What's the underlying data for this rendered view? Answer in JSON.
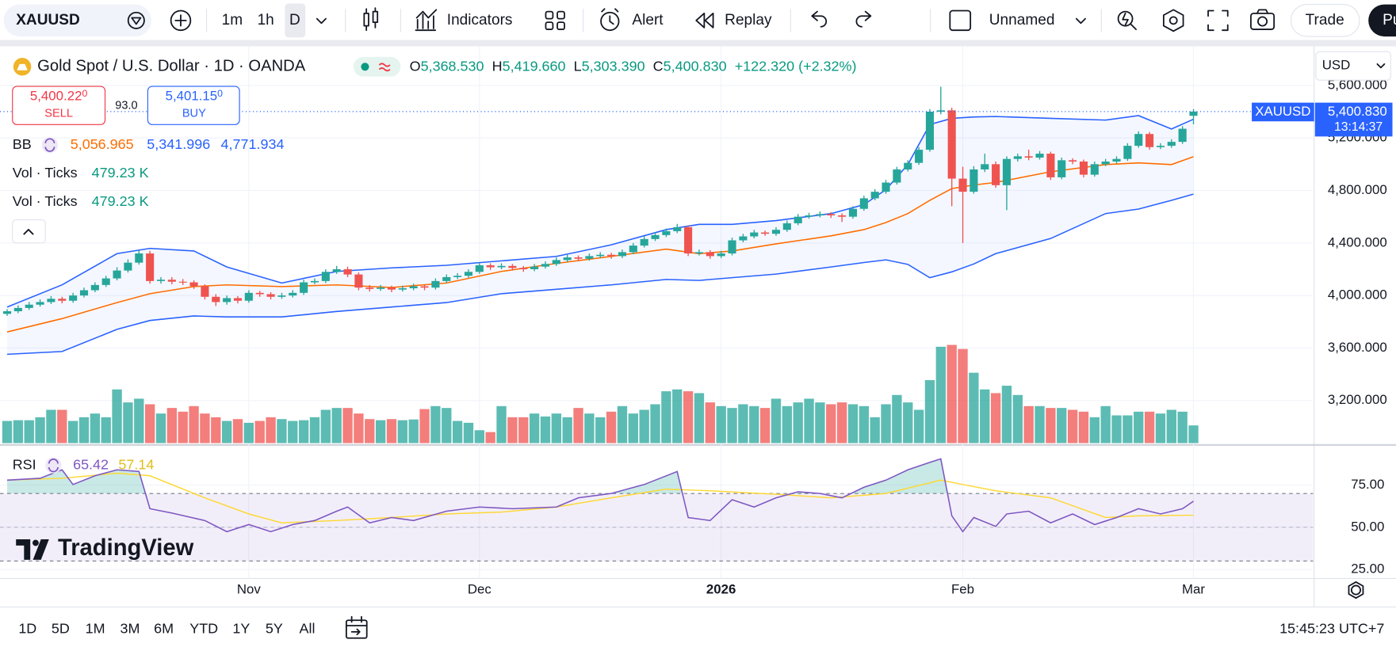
{
  "toolbar": {
    "symbol": "XAUUSD",
    "intervals": [
      "1m",
      "1h",
      "D"
    ],
    "indicators": "Indicators",
    "alert": "Alert",
    "replay": "Replay",
    "layout": "Unnamed",
    "trade": "Trade",
    "publish": "Pu"
  },
  "legend": {
    "title": "Gold Spot / U.S. Dollar · 1D · OANDA",
    "ohlc": [
      {
        "key": "O",
        "value": "5,368.530"
      },
      {
        "key": "H",
        "value": "5,419.660"
      },
      {
        "key": "L",
        "value": "5,303.390"
      },
      {
        "key": "C",
        "value": "5,400.830"
      }
    ],
    "change": "+122.320 (+2.32%)",
    "sell_price": "5,400.22",
    "sell_pip": "0",
    "sell": "SELL",
    "spread": "93.0",
    "buy_price": "5,401.15",
    "buy_pip": "0",
    "buy": "BUY",
    "bb": {
      "name": "BB",
      "values": [
        "5,056.965",
        "5,341.996",
        "4,771.934"
      ]
    },
    "vol": [
      {
        "name": "Vol · Ticks",
        "value": "479.23 K"
      },
      {
        "name": "Vol · Ticks",
        "value": "479.23 K"
      }
    ],
    "rsi": {
      "name": "RSI",
      "values": [
        "65.42",
        "57.14"
      ]
    }
  },
  "price_label": {
    "symbol": "XAUUSD",
    "price": "5,400.830",
    "countdown": "13:14:37"
  },
  "currency": "USD",
  "watermark": "TradingView",
  "ranges": [
    "1D",
    "5D",
    "1M",
    "3M",
    "6M",
    "YTD",
    "1Y",
    "5Y",
    "All"
  ],
  "clock": "15:45:23 UTC+7",
  "chart_data": {
    "type": "candlestick",
    "xlim": [
      -0.65,
      118.9
    ],
    "xticks": [
      {
        "value": 22,
        "label": "Nov"
      },
      {
        "value": 43,
        "label": "Dec"
      },
      {
        "value": 65,
        "label": "2026"
      },
      {
        "value": 87,
        "label": "Feb"
      },
      {
        "value": 108,
        "label": "Mar"
      }
    ],
    "ylim": [
      2875,
      5898
    ],
    "yticks": [
      {
        "value": 3200,
        "label": "3,200.000"
      },
      {
        "value": 3600,
        "label": "3,600.000"
      },
      {
        "value": 4000,
        "label": "4,000.000"
      },
      {
        "value": 4400,
        "label": "4,400.000"
      },
      {
        "value": 4800,
        "label": "4,800.000"
      },
      {
        "value": 5200,
        "label": "5,200.000"
      },
      {
        "value": 5600,
        "label": "5,600.000"
      }
    ],
    "grid": true,
    "colors": {
      "up": "#26a69a",
      "down": "#ef5350",
      "last": "#2962ff"
    },
    "ohlc": [
      [
        3860,
        3895,
        3845,
        3880
      ],
      [
        3880,
        3925,
        3865,
        3905
      ],
      [
        3905,
        3950,
        3890,
        3930
      ],
      [
        3930,
        3970,
        3915,
        3950
      ],
      [
        3950,
        3995,
        3935,
        3975
      ],
      [
        3975,
        3990,
        3940,
        3960
      ],
      [
        3960,
        4020,
        3945,
        4000
      ],
      [
        4000,
        4060,
        3985,
        4040
      ],
      [
        4040,
        4100,
        4025,
        4080
      ],
      [
        4080,
        4150,
        4065,
        4130
      ],
      [
        4130,
        4215,
        4115,
        4190
      ],
      [
        4190,
        4275,
        4175,
        4250
      ],
      [
        4250,
        4345,
        4235,
        4320
      ],
      [
        4320,
        4340,
        4090,
        4110
      ],
      [
        4110,
        4140,
        4090,
        4120
      ],
      [
        4120,
        4140,
        4085,
        4105
      ],
      [
        4105,
        4125,
        4080,
        4100
      ],
      [
        4100,
        4115,
        4050,
        4070
      ],
      [
        4070,
        4085,
        3970,
        3990
      ],
      [
        3990,
        4010,
        3920,
        3950
      ],
      [
        3950,
        4000,
        3930,
        3980
      ],
      [
        3980,
        3995,
        3940,
        3960
      ],
      [
        3960,
        4040,
        3945,
        4020
      ],
      [
        4020,
        4035,
        3990,
        4010
      ],
      [
        4010,
        4025,
        3970,
        3990
      ],
      [
        3990,
        4020,
        3975,
        4000
      ],
      [
        4000,
        4040,
        3985,
        4020
      ],
      [
        4020,
        4120,
        4005,
        4100
      ],
      [
        4100,
        4130,
        4085,
        4110
      ],
      [
        4110,
        4200,
        4095,
        4180
      ],
      [
        4180,
        4225,
        4165,
        4200
      ],
      [
        4200,
        4220,
        4140,
        4160
      ],
      [
        4160,
        4175,
        4040,
        4060
      ],
      [
        4060,
        4080,
        4030,
        4050
      ],
      [
        4050,
        4080,
        4035,
        4060
      ],
      [
        4060,
        4075,
        4025,
        4045
      ],
      [
        4045,
        4075,
        4030,
        4055
      ],
      [
        4055,
        4090,
        4040,
        4070
      ],
      [
        4070,
        4085,
        4040,
        4060
      ],
      [
        4060,
        4130,
        4045,
        4110
      ],
      [
        4110,
        4160,
        4095,
        4140
      ],
      [
        4140,
        4170,
        4125,
        4150
      ],
      [
        4150,
        4200,
        4135,
        4180
      ],
      [
        4180,
        4250,
        4165,
        4230
      ],
      [
        4230,
        4245,
        4195,
        4215
      ],
      [
        4215,
        4245,
        4200,
        4225
      ],
      [
        4225,
        4240,
        4190,
        4210
      ],
      [
        4210,
        4225,
        4180,
        4200
      ],
      [
        4200,
        4240,
        4185,
        4220
      ],
      [
        4220,
        4260,
        4205,
        4240
      ],
      [
        4240,
        4290,
        4225,
        4270
      ],
      [
        4270,
        4310,
        4255,
        4290
      ],
      [
        4290,
        4305,
        4260,
        4280
      ],
      [
        4280,
        4320,
        4265,
        4300
      ],
      [
        4300,
        4330,
        4285,
        4310
      ],
      [
        4310,
        4325,
        4280,
        4300
      ],
      [
        4300,
        4350,
        4285,
        4330
      ],
      [
        4330,
        4400,
        4315,
        4380
      ],
      [
        4380,
        4450,
        4365,
        4430
      ],
      [
        4430,
        4480,
        4415,
        4460
      ],
      [
        4460,
        4510,
        4445,
        4490
      ],
      [
        4490,
        4545,
        4475,
        4520
      ],
      [
        4520,
        4535,
        4300,
        4320
      ],
      [
        4320,
        4350,
        4305,
        4330
      ],
      [
        4330,
        4345,
        4280,
        4300
      ],
      [
        4300,
        4340,
        4285,
        4320
      ],
      [
        4320,
        4440,
        4305,
        4420
      ],
      [
        4420,
        4470,
        4405,
        4450
      ],
      [
        4450,
        4500,
        4435,
        4480
      ],
      [
        4480,
        4495,
        4455,
        4470
      ],
      [
        4470,
        4520,
        4455,
        4500
      ],
      [
        4500,
        4570,
        4485,
        4550
      ],
      [
        4550,
        4620,
        4535,
        4600
      ],
      [
        4600,
        4630,
        4585,
        4610
      ],
      [
        4610,
        4640,
        4595,
        4620
      ],
      [
        4620,
        4635,
        4590,
        4610
      ],
      [
        4610,
        4625,
        4560,
        4600
      ],
      [
        4600,
        4680,
        4585,
        4660
      ],
      [
        4660,
        4760,
        4645,
        4740
      ],
      [
        4740,
        4810,
        4725,
        4790
      ],
      [
        4790,
        4880,
        4775,
        4860
      ],
      [
        4860,
        4980,
        4845,
        4960
      ],
      [
        4960,
        5030,
        4945,
        5010
      ],
      [
        5010,
        5130,
        4995,
        5110
      ],
      [
        5110,
        5420,
        5095,
        5400
      ],
      [
        5400,
        5590,
        5380,
        5410
      ],
      [
        5410,
        5430,
        4680,
        4890
      ],
      [
        4890,
        4980,
        4400,
        4790
      ],
      [
        4790,
        4985,
        4775,
        4960
      ],
      [
        4960,
        5080,
        4940,
        5000
      ],
      [
        5000,
        5020,
        4820,
        4840
      ],
      [
        4840,
        5060,
        4650,
        5040
      ],
      [
        5040,
        5080,
        5020,
        5060
      ],
      [
        5060,
        5110,
        5030,
        5050
      ],
      [
        5050,
        5100,
        5035,
        5080
      ],
      [
        5080,
        5095,
        4880,
        4900
      ],
      [
        4900,
        5050,
        4885,
        5030
      ],
      [
        5030,
        5045,
        5000,
        5020
      ],
      [
        5020,
        5035,
        4900,
        4920
      ],
      [
        4920,
        5020,
        4905,
        5000
      ],
      [
        5000,
        5040,
        4985,
        5020
      ],
      [
        5020,
        5060,
        5005,
        5040
      ],
      [
        5040,
        5160,
        5025,
        5140
      ],
      [
        5140,
        5250,
        5125,
        5230
      ],
      [
        5230,
        5245,
        5110,
        5130
      ],
      [
        5130,
        5160,
        5115,
        5140
      ],
      [
        5140,
        5190,
        5125,
        5170
      ],
      [
        5170,
        5290,
        5155,
        5270
      ],
      [
        5368.53,
        5419.66,
        5303.39,
        5400.83
      ]
    ],
    "volume": {
      "ylim": [
        0,
        10700
      ],
      "opacity": 0.75,
      "values": [
        600,
        620,
        620,
        700,
        900,
        900,
        600,
        700,
        800,
        700,
        1450,
        1100,
        1200,
        1050,
        800,
        950,
        850,
        1000,
        800,
        700,
        600,
        650,
        550,
        600,
        700,
        650,
        600,
        620,
        700,
        900,
        950,
        950,
        800,
        650,
        620,
        650,
        620,
        640,
        920,
        1000,
        950,
        600,
        550,
        350,
        300,
        1000,
        700,
        700,
        800,
        720,
        800,
        700,
        950,
        800,
        700,
        850,
        1000,
        800,
        900,
        1050,
        1400,
        1450,
        1400,
        1350,
        1100,
        1000,
        950,
        1050,
        1000,
        950,
        1200,
        1000,
        1100,
        1200,
        1100,
        1050,
        1100,
        1050,
        1000,
        700,
        1050,
        1300,
        1100,
        900,
        1700,
        2600,
        2650,
        2540,
        1900,
        1450,
        1350,
        1550,
        1300,
        1000,
        1000,
        950,
        950,
        900,
        850,
        700,
        1000,
        750,
        750,
        850,
        850,
        800,
        900,
        850,
        479.23
      ]
    },
    "bb": {
      "colors": {
        "upper": "#2962ff",
        "basis": "#ff6d00",
        "lower": "#2962ff",
        "fill": "#2962ff"
      },
      "x": [
        0,
        5,
        10,
        13,
        17,
        20,
        25,
        30,
        35,
        40,
        45,
        50,
        55,
        60,
        63,
        66,
        70,
        75,
        78,
        80,
        82,
        84,
        86,
        88,
        90,
        95,
        100,
        103,
        106,
        108
      ],
      "upper": [
        3912,
        4081,
        4319,
        4359,
        4339,
        4217,
        4095,
        4183,
        4210,
        4230,
        4264,
        4298,
        4386,
        4502,
        4542,
        4542,
        4570,
        4624,
        4692,
        4807,
        4997,
        5302,
        5349,
        5360,
        5363,
        5349,
        5336,
        5370,
        5268,
        5341.996
      ],
      "basis": [
        3722,
        3824,
        3946,
        4014,
        4068,
        4081,
        4068,
        4081,
        4061,
        4095,
        4183,
        4244,
        4298,
        4353,
        4319,
        4339,
        4393,
        4454,
        4502,
        4556,
        4624,
        4725,
        4814,
        4841,
        4861,
        4942,
        4997,
        5010,
        4997,
        5056.965
      ],
      "lower": [
        3552,
        3573,
        3742,
        3810,
        3844,
        3837,
        3837,
        3878,
        3912,
        3946,
        4014,
        4047,
        4081,
        4122,
        4115,
        4136,
        4163,
        4217,
        4251,
        4271,
        4237,
        4136,
        4180,
        4240,
        4319,
        4434,
        4624,
        4658,
        4725,
        4771.934
      ]
    },
    "rsi": {
      "ylim": [
        19.7,
        98.7
      ],
      "yticks": [
        {
          "value": 25,
          "label": "25.00"
        },
        {
          "value": 50,
          "label": "50.00"
        },
        {
          "value": 75,
          "label": "75.00"
        }
      ],
      "band": [
        30,
        70
      ],
      "mid": 50,
      "colors": {
        "line": "#7e57c2",
        "ma": "#fdd835",
        "band": "#7e57c2",
        "over": "#26a69a"
      },
      "x": [
        0,
        3,
        5,
        6,
        8,
        10,
        12,
        13,
        15,
        18,
        20,
        22,
        24,
        26,
        28,
        30,
        31,
        33,
        35,
        37,
        40,
        43,
        46,
        50,
        52,
        55,
        58,
        61,
        62,
        64,
        66,
        68,
        70,
        72,
        74,
        76,
        78,
        80,
        82,
        84,
        85,
        86,
        87,
        88,
        90,
        91,
        93,
        95,
        97,
        99,
        101,
        103,
        105,
        107,
        108
      ],
      "values": [
        77.9,
        79,
        84,
        75.3,
        80.5,
        84,
        83,
        61,
        58.4,
        54,
        47.4,
        51.6,
        47.4,
        51.6,
        54,
        59.5,
        62,
        52.6,
        55.8,
        54,
        59.5,
        62,
        61,
        62,
        67.4,
        70,
        75.3,
        83,
        55.8,
        54,
        66.3,
        62,
        67.4,
        71,
        70,
        67.4,
        73.7,
        77.9,
        84,
        88.4,
        90.5,
        56.8,
        47.4,
        55.8,
        50.5,
        57.9,
        59.5,
        52.6,
        57.9,
        51.6,
        55.8,
        61,
        57.9,
        61,
        65.42
      ],
      "ma_x": [
        0,
        5,
        10,
        13,
        18,
        22,
        25,
        30,
        35,
        40,
        45,
        50,
        55,
        60,
        64,
        70,
        75,
        80,
        85,
        87,
        90,
        95,
        100,
        103,
        108
      ],
      "ma": [
        77.9,
        79,
        82,
        80.5,
        67.4,
        57.9,
        52.6,
        54,
        55.8,
        57.9,
        59,
        62,
        67.4,
        72.6,
        71.6,
        69.5,
        67.4,
        70,
        77.9,
        75.3,
        71.6,
        67.4,
        55.8,
        56.8,
        57.14
      ]
    }
  }
}
